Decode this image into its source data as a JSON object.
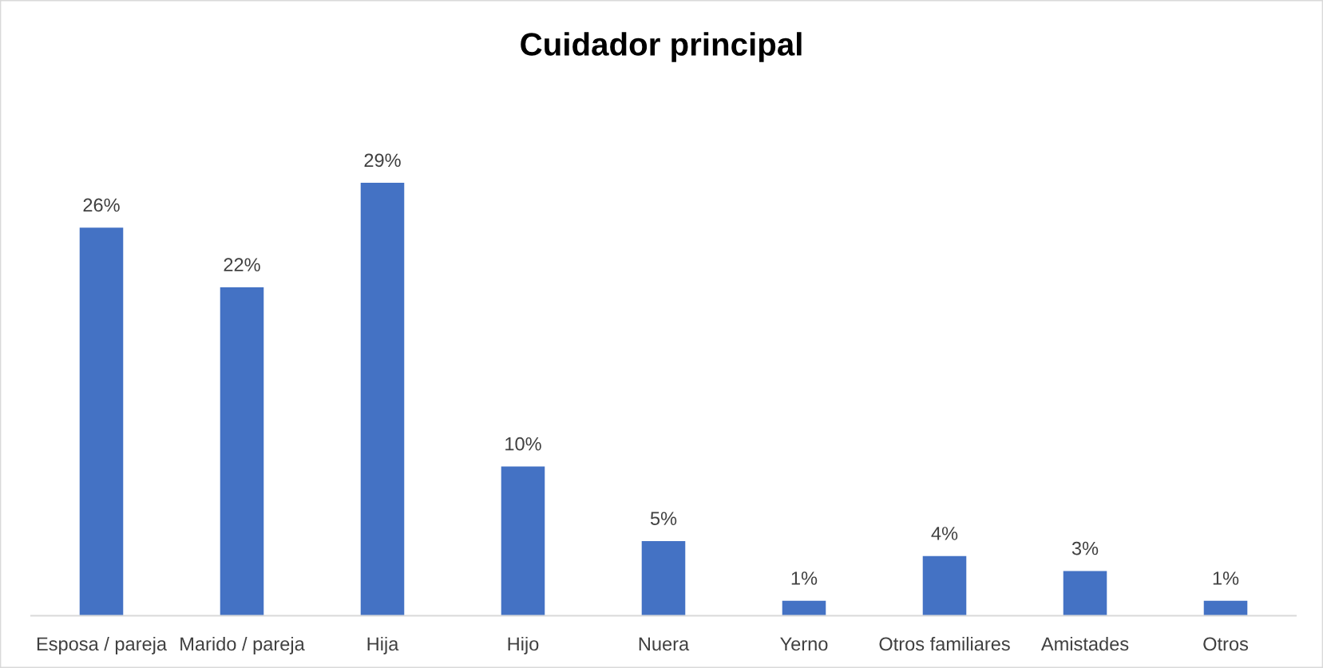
{
  "chart_data": {
    "type": "bar",
    "title": "Cuidador principal",
    "categories": [
      "Esposa / pareja",
      "Marido / pareja",
      "Hija",
      "Hijo",
      "Nuera",
      "Yerno",
      "Otros familiares",
      "Amistades",
      "Otros"
    ],
    "values": [
      26,
      22,
      29,
      10,
      5,
      1,
      4,
      3,
      1
    ],
    "value_labels": [
      "26%",
      "22%",
      "29%",
      "10%",
      "5%",
      "1%",
      "4%",
      "3%",
      "1%"
    ],
    "color": "#4472c4",
    "tick_labels": "x",
    "grid": false,
    "legend": false
  }
}
